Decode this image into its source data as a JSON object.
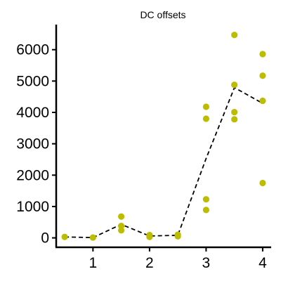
{
  "chart_data": {
    "type": "scatter",
    "title": "DC offsets",
    "xlabel": "",
    "ylabel": "",
    "xlim": [
      0.35,
      4.15
    ],
    "ylim": [
      -300,
      6800
    ],
    "x_ticks": [
      1,
      2,
      3,
      4
    ],
    "x_tick_labels": [
      "1",
      "2",
      "3",
      "4"
    ],
    "y_ticks": [
      0,
      1000,
      2000,
      3000,
      4000,
      5000,
      6000
    ],
    "y_tick_labels": [
      "0",
      "1000",
      "2000",
      "3000",
      "4000",
      "5000",
      "6000"
    ],
    "grid": false,
    "series": [
      {
        "kind": "points",
        "color": "#bdbd00",
        "x": [
          0.5,
          1.0,
          1.5,
          1.5,
          1.5,
          2.0,
          2.0,
          2.5,
          2.5,
          3.0,
          3.0,
          3.0,
          3.0,
          3.5,
          3.5,
          3.5,
          3.5,
          4.0,
          4.0,
          4.0,
          4.0
        ],
        "y": [
          30,
          10,
          680,
          380,
          240,
          90,
          30,
          100,
          50,
          4180,
          3800,
          1230,
          890,
          6470,
          4880,
          4010,
          3780,
          5860,
          5170,
          4370,
          1750
        ]
      },
      {
        "kind": "dashed-line",
        "color": "#000000",
        "x": [
          0.5,
          1.0,
          1.5,
          2.0,
          2.5,
          3.0,
          3.5,
          4.0
        ],
        "y": [
          30,
          10,
          430,
          60,
          80,
          2530,
          4790,
          4290
        ]
      }
    ]
  }
}
